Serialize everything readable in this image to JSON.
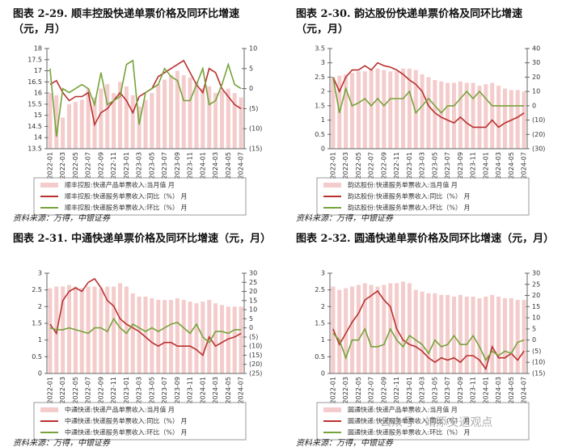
{
  "chart_data": [
    {
      "type": "combo",
      "title": "图表 2-29. 顺丰控股快递单票价格及同环比增速（元，月）",
      "source": "资料来源：万得，中银证券",
      "categories": [
        "2022-01",
        null,
        "2022-03",
        null,
        "2022-05",
        null,
        "2022-07",
        null,
        "2022-09",
        null,
        "2022-11",
        null,
        "2023-01",
        null,
        "2023-03",
        null,
        "2023-05",
        null,
        "2023-07",
        null,
        "2023-09",
        null,
        "2023-11",
        null,
        "2024-01",
        null,
        "2024-03",
        null,
        "2024-05",
        null,
        "2024-07"
      ],
      "ylim": [
        13.5,
        18
      ],
      "yticks": [
        13.5,
        14,
        14.5,
        15,
        15.5,
        16,
        16.5,
        17,
        17.5,
        18
      ],
      "y2lim": [
        -15,
        10
      ],
      "y2ticks": [
        {
          "value": -15,
          "label": "(15)"
        },
        {
          "value": -10,
          "label": "(10)"
        },
        {
          "value": -5,
          "label": "(5)"
        },
        0,
        5,
        10
      ],
      "negative_tick_color": "#d9262b",
      "series": [
        {
          "name": "顺丰控股:快递产品单票收入:当月值 月",
          "type": "bar",
          "color": "#f4cccc",
          "values": [
            16.0,
            15.9,
            14.9,
            15.5,
            15.6,
            15.7,
            16.2,
            15.8,
            16.2,
            16.4,
            16.0,
            16.5,
            16.3,
            15.9,
            15.4,
            15.7,
            16.0,
            16.4,
            16.6,
            16.8,
            17.0,
            16.8,
            16.7,
            16.5,
            16.2,
            16.3,
            16.0,
            16.1,
            16.2,
            16.0,
            15.8
          ]
        },
        {
          "name": "顺丰控股:快递服务单票收入:同比（%） 月",
          "type": "line",
          "axis": "y2",
          "color": "#b8312f",
          "values": [
            1,
            2,
            -1,
            -3,
            -2,
            -2,
            -1,
            -9,
            -6,
            -5,
            -3,
            -1,
            -3,
            -6,
            -2,
            -1,
            0,
            3,
            4,
            5,
            6,
            7,
            4,
            1,
            -1,
            5,
            4,
            0,
            -2,
            -4,
            -5
          ]
        },
        {
          "name": "顺丰控股:快递服务单票收入:环比（%） 月",
          "type": "line",
          "axis": "y2",
          "color": "#76a33a",
          "values": [
            5,
            -12,
            0,
            -1,
            0,
            1,
            0,
            -4,
            4,
            -4,
            -3,
            -2,
            6,
            7,
            -9,
            -1,
            0,
            1,
            5,
            3,
            2,
            -3,
            -3,
            1,
            5,
            -4,
            -3,
            1,
            6,
            1,
            0
          ]
        }
      ]
    },
    {
      "type": "combo",
      "title": "图表 2-30. 韵达股份快递单票价格及同环比增速（元，月）",
      "source": "资料来源：万得，中银证券",
      "categories": [
        "2022-01",
        null,
        "2022-03",
        null,
        "2022-05",
        null,
        "2022-07",
        null,
        "2022-09",
        null,
        "2022-11",
        null,
        "2023-01",
        null,
        "2023-03",
        null,
        "2023-05",
        null,
        "2023-07",
        null,
        "2023-09",
        null,
        "2023-11",
        null,
        "2024-01",
        null,
        "2024-03",
        null,
        "2024-05",
        null,
        "2024-07"
      ],
      "ylim": [
        0,
        3.5
      ],
      "yticks": [
        0,
        0.5,
        1,
        1.5,
        2,
        2.5,
        3,
        3.5
      ],
      "y2lim": [
        -30,
        40
      ],
      "y2ticks": [
        {
          "value": -30,
          "label": "(30)"
        },
        {
          "value": -20,
          "label": "(20)"
        },
        {
          "value": -10,
          "label": "(10)"
        },
        0,
        10,
        20,
        30,
        40
      ],
      "negative_tick_color": "#d9262b",
      "series": [
        {
          "name": "韵达股份:快递服务单票收入:当月值 月",
          "type": "bar",
          "color": "#f4cccc",
          "values": [
            2.5,
            2.55,
            2.6,
            2.65,
            2.7,
            2.7,
            2.75,
            2.8,
            2.75,
            2.7,
            2.7,
            2.8,
            2.8,
            2.75,
            2.6,
            2.5,
            2.4,
            2.35,
            2.3,
            2.3,
            2.35,
            2.3,
            2.3,
            2.2,
            2.25,
            2.3,
            2.2,
            2.1,
            2.05,
            2.05,
            2.0
          ]
        },
        {
          "name": "韵达股份:快递服务单票收入:同比（%） 月",
          "type": "line",
          "axis": "y2",
          "color": "#b8312f",
          "values": [
            20,
            10,
            20,
            25,
            25,
            28,
            25,
            30,
            28,
            27,
            25,
            22,
            18,
            15,
            10,
            0,
            -5,
            -8,
            -10,
            -12,
            -8,
            -12,
            -15,
            -15,
            -15,
            -10,
            -15,
            -12,
            -10,
            -8,
            -5
          ]
        },
        {
          "name": "韵达股份:快递服务单票收入:环比（%） 月",
          "type": "line",
          "axis": "y2",
          "color": "#76a33a",
          "values": [
            20,
            -5,
            12,
            0,
            2,
            5,
            0,
            5,
            0,
            5,
            5,
            5,
            10,
            -5,
            0,
            5,
            0,
            -5,
            0,
            0,
            5,
            10,
            5,
            10,
            5,
            0,
            0,
            0,
            0,
            0,
            0
          ]
        }
      ]
    },
    {
      "type": "combo",
      "title": "图表 2-31. 中通快递单票价格及同环比增速（元，月）",
      "source": "资料来源：万得，中银证券",
      "categories": [
        "2022-01",
        null,
        "2022-03",
        null,
        "2022-05",
        null,
        "2022-07",
        null,
        "2022-09",
        null,
        "2022-11",
        null,
        "2023-01",
        null,
        "2023-03",
        null,
        "2023-05",
        null,
        "2023-07",
        null,
        "2023-09",
        null,
        "2023-11",
        null,
        "2024-01",
        null,
        "2024-03",
        null,
        "2024-05",
        null,
        "2024-07"
      ],
      "ylim": [
        0,
        3
      ],
      "yticks": [
        0,
        0.5,
        1,
        1.5,
        2,
        2.5,
        3
      ],
      "y2lim": [
        -25,
        30
      ],
      "y2ticks": [
        {
          "value": -25,
          "label": "(25)"
        },
        {
          "value": -20,
          "label": "(20)"
        },
        {
          "value": -15,
          "label": "(15)"
        },
        {
          "value": -10,
          "label": "(10)"
        },
        {
          "value": -5,
          "label": "(5)"
        },
        0,
        5,
        10,
        15,
        20,
        25,
        30
      ],
      "negative_tick_color": "#d9262b",
      "series": [
        {
          "name": "中通快递:快递产品单票收入:当月值 月",
          "type": "bar",
          "color": "#f4cccc",
          "values": [
            2.55,
            2.6,
            2.6,
            2.65,
            2.6,
            2.55,
            2.6,
            2.6,
            2.55,
            2.6,
            2.6,
            2.7,
            2.6,
            2.4,
            2.3,
            2.3,
            2.25,
            2.2,
            2.2,
            2.2,
            2.25,
            2.2,
            2.15,
            2.1,
            2.15,
            2.2,
            2.1,
            2.05,
            2.0,
            2.0,
            2.0
          ]
        },
        {
          "name": "中通快递:快递服务单票收入:同比（%） 月",
          "type": "line",
          "axis": "y2",
          "color": "#b8312f",
          "values": [
            2,
            -3,
            15,
            20,
            22,
            20,
            25,
            27,
            22,
            15,
            12,
            5,
            2,
            0,
            -2,
            -5,
            -8,
            -10,
            -8,
            -8,
            -10,
            -10,
            -10,
            -12,
            -15,
            -5,
            -10,
            -8,
            -6,
            -5,
            -3
          ]
        },
        {
          "name": "中通快递:快递服务单票收入:环比（%） 月",
          "type": "line",
          "axis": "y2",
          "color": "#76a33a",
          "values": [
            0,
            -1,
            -1,
            0,
            -1,
            -2,
            -3,
            0,
            0,
            -2,
            5,
            0,
            -3,
            2,
            0,
            -2,
            0,
            -2,
            0,
            2,
            3,
            0,
            -3,
            2,
            -5,
            -8,
            -2,
            -2,
            -3,
            -1,
            -1
          ]
        }
      ]
    },
    {
      "type": "combo",
      "title": "图表 2-32. 圆通快递单票价格及同环比增速（元，月）",
      "source": "资料来源：万得，中银证券",
      "categories": [
        "2022-01",
        null,
        "2022-03",
        null,
        "2022-05",
        null,
        "2022-07",
        null,
        "2022-09",
        null,
        "2022-11",
        null,
        "2023-01",
        null,
        "2023-03",
        null,
        "2023-05",
        null,
        "2023-07",
        null,
        "2023-09",
        null,
        "2023-11",
        null,
        "2024-01",
        null,
        "2024-03",
        null,
        "2024-05",
        null,
        "2024-07"
      ],
      "ylim": [
        0,
        3
      ],
      "yticks": [
        0,
        0.5,
        1,
        1.5,
        2,
        2.5,
        3
      ],
      "y2lim": [
        -15,
        30
      ],
      "y2ticks": [
        {
          "value": -15,
          "label": "(15)"
        },
        {
          "value": -10,
          "label": "(10)"
        },
        {
          "value": -5,
          "label": "(5)"
        },
        0,
        5,
        10,
        15,
        20,
        25,
        30
      ],
      "negative_tick_color": "#d9262b",
      "series": [
        {
          "name": "圆通快递:快递产品单票收入:当月值 月",
          "type": "bar",
          "color": "#f4cccc",
          "values": [
            2.6,
            2.5,
            2.55,
            2.6,
            2.65,
            2.7,
            2.65,
            2.6,
            2.65,
            2.7,
            2.7,
            2.75,
            2.7,
            2.5,
            2.45,
            2.4,
            2.4,
            2.35,
            2.35,
            2.3,
            2.35,
            2.3,
            2.3,
            2.25,
            2.3,
            2.35,
            2.3,
            2.25,
            2.25,
            2.2,
            2.2
          ]
        },
        {
          "name": "圆通快递:快递服务单票收入:同比（%） 月",
          "type": "line",
          "axis": "y2",
          "color": "#b8312f",
          "values": [
            5,
            -2,
            3,
            8,
            12,
            18,
            20,
            22,
            18,
            15,
            5,
            0,
            -2,
            -3,
            -5,
            -8,
            -10,
            -8,
            -9,
            -8,
            -10,
            -7,
            -7,
            -9,
            -13,
            -3,
            -8,
            -8,
            -6,
            -9,
            -5
          ]
        },
        {
          "name": "圆通快递:快递服务单票收入:环比（%） 月",
          "type": "line",
          "axis": "y2",
          "color": "#76a33a",
          "values": [
            3,
            0,
            -8,
            0,
            0,
            5,
            -3,
            -3,
            -2,
            5,
            0,
            -3,
            2,
            0,
            -2,
            -6,
            0,
            -3,
            -2,
            2,
            -2,
            -2,
            2,
            -3,
            -9,
            -5,
            -7,
            -5,
            -6,
            -1,
            0
          ]
        }
      ]
    }
  ],
  "watermark": "公众号 · 靖添交通观点"
}
